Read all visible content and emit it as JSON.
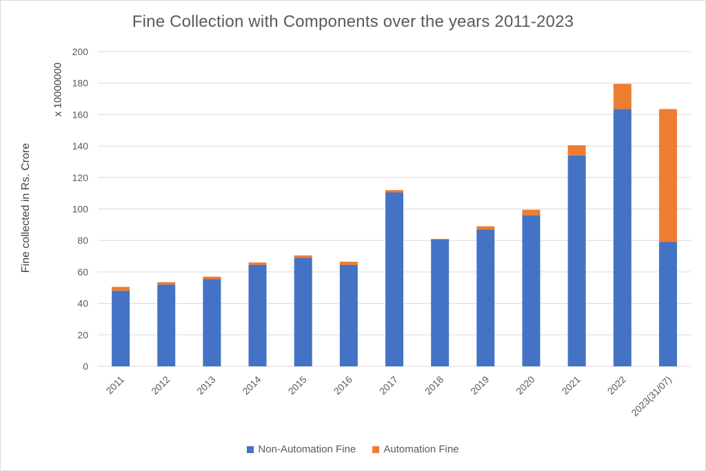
{
  "chart_data": {
    "type": "bar",
    "stacked": true,
    "title": "Fine Collection with Components over the years 2011-2023",
    "ylabel": "Fine collected in Rs. Crore",
    "yunit": "x 10000000",
    "xlabel": "",
    "ylim": [
      0,
      200
    ],
    "yticks": [
      0,
      20,
      40,
      60,
      80,
      100,
      120,
      140,
      160,
      180,
      200
    ],
    "grid": true,
    "legend_position": "bottom",
    "categories": [
      "2011",
      "2012",
      "2013",
      "2014",
      "2015",
      "2016",
      "2017",
      "2018",
      "2019",
      "2020",
      "2021",
      "2022",
      "2023(31/07)"
    ],
    "series": [
      {
        "name": "Non-Automation Fine",
        "color": "#4472c4",
        "values": [
          48,
          52,
          55.5,
          64.5,
          69,
          64.5,
          110.5,
          80.5,
          87,
          96,
          134,
          163.5,
          79
        ]
      },
      {
        "name": "Automation Fine",
        "color": "#ed7d31",
        "values": [
          2.5,
          1.5,
          1.5,
          1.5,
          1.5,
          2,
          1.5,
          0.5,
          2,
          3.5,
          6.5,
          16,
          84.5
        ]
      }
    ]
  }
}
